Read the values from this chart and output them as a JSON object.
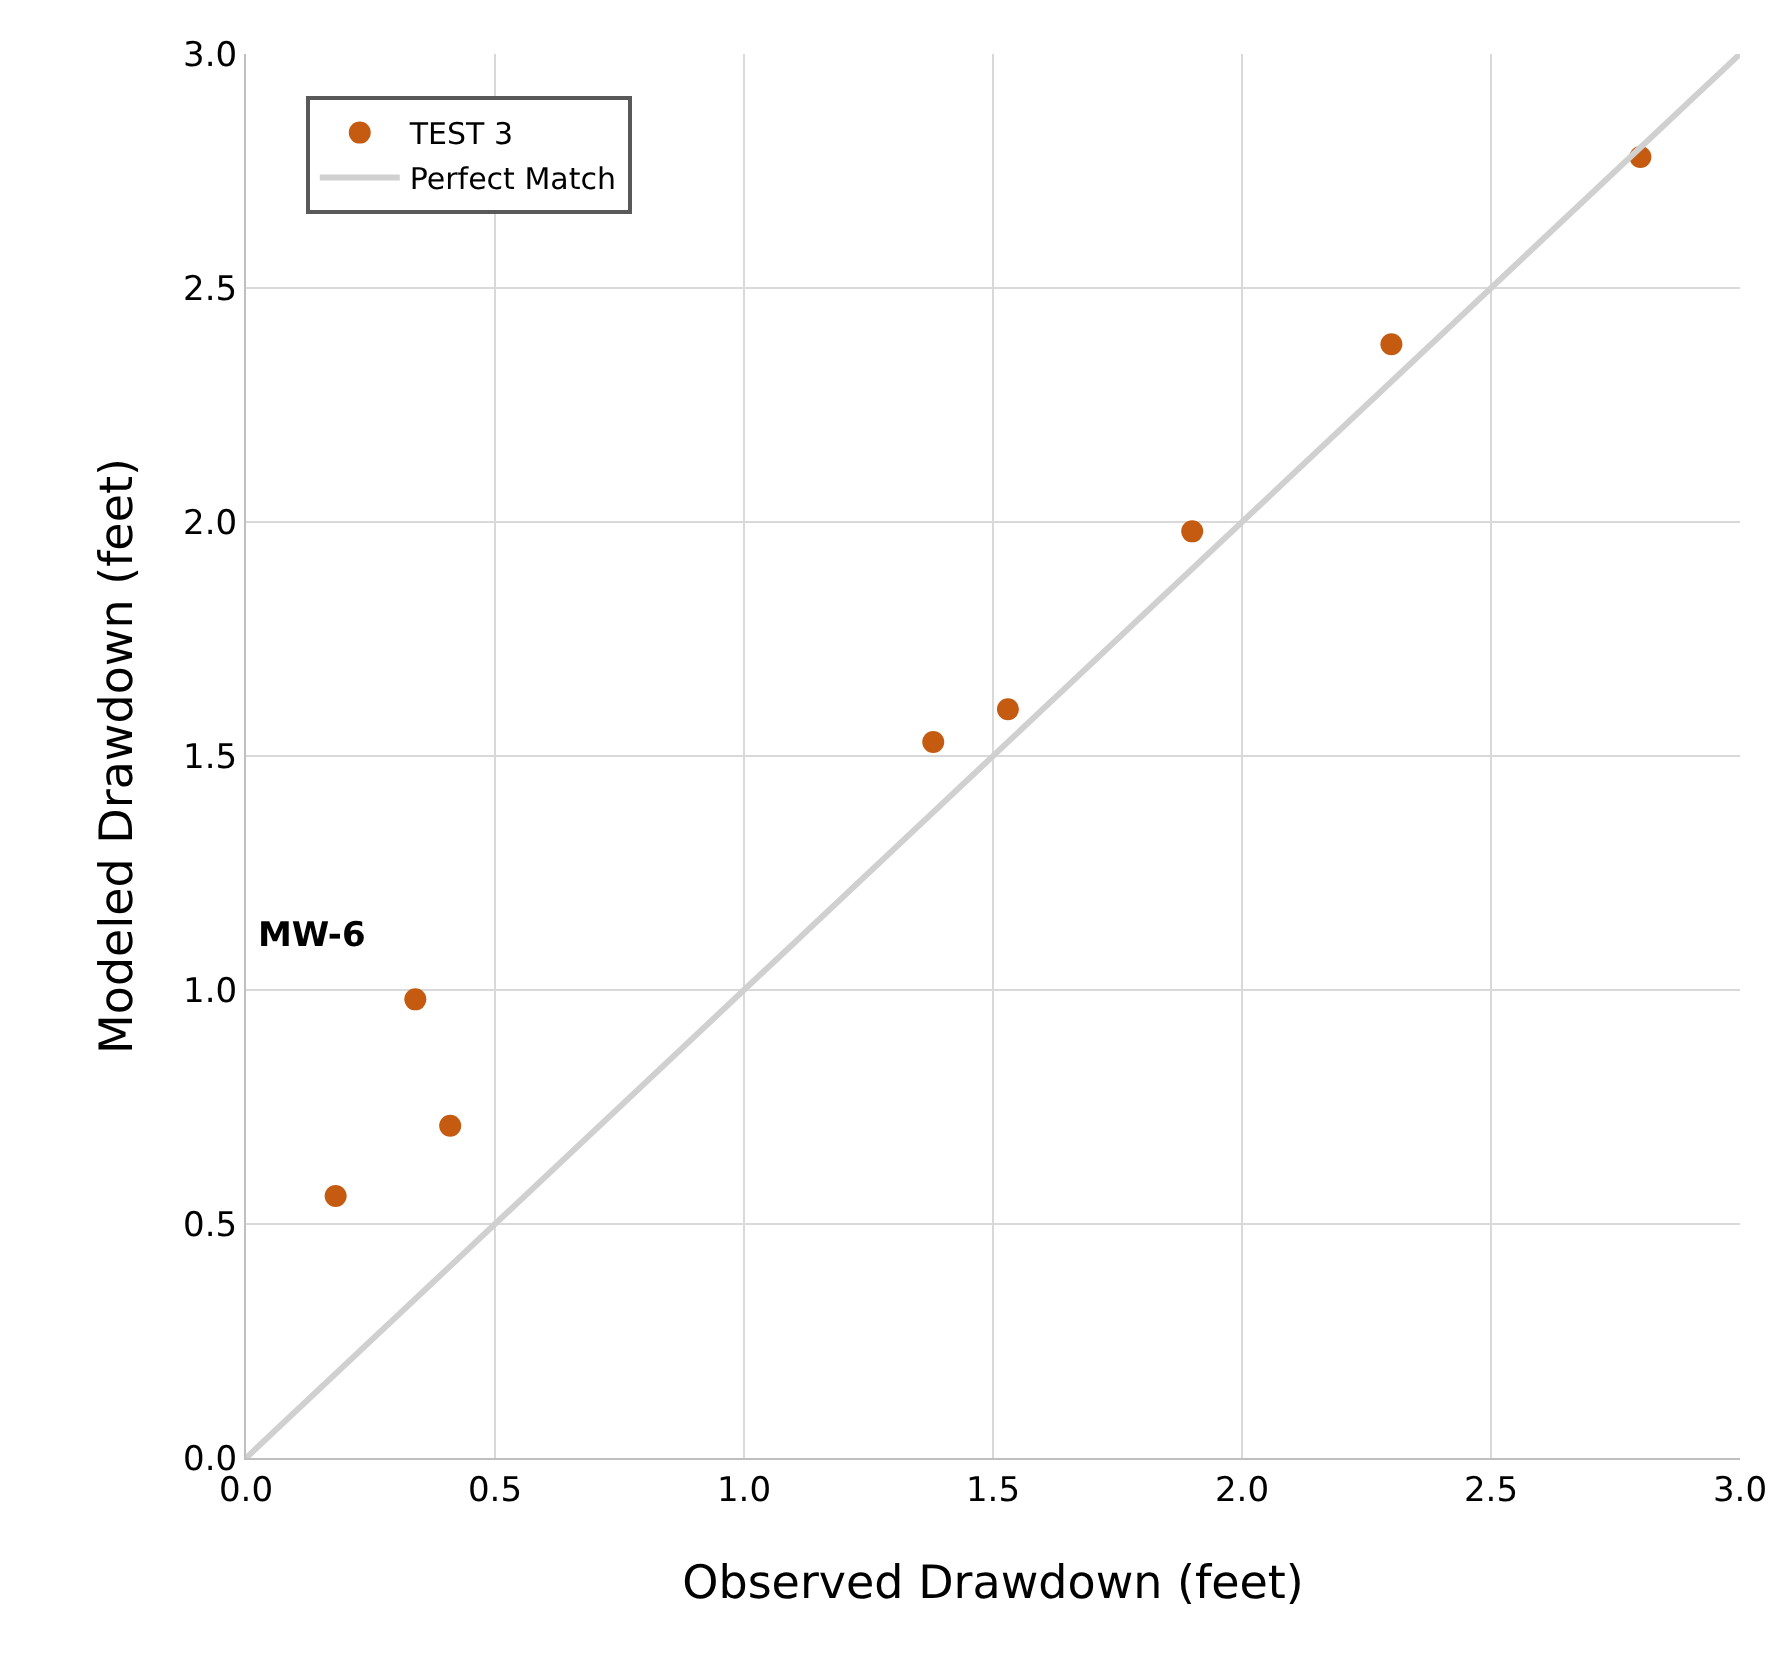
{
  "chart_data": {
    "type": "scatter",
    "xlabel": "Observed Drawdown (feet)",
    "ylabel": "Modeled Drawdown (feet)",
    "xlim": [
      0,
      3
    ],
    "ylim": [
      0,
      3
    ],
    "xticks": [
      {
        "value": 0,
        "label": "0.0"
      },
      {
        "value": 0.5,
        "label": "0.5"
      },
      {
        "value": 1,
        "label": "1.0"
      },
      {
        "value": 1.5,
        "label": "1.5"
      },
      {
        "value": 2,
        "label": "2.0"
      },
      {
        "value": 2.5,
        "label": "2.5"
      },
      {
        "value": 3,
        "label": "3.0"
      }
    ],
    "yticks": [
      {
        "value": 0,
        "label": "0.0"
      },
      {
        "value": 0.5,
        "label": "0.5"
      },
      {
        "value": 1,
        "label": "1.0"
      },
      {
        "value": 1.5,
        "label": "1.5"
      },
      {
        "value": 2,
        "label": "2.0"
      },
      {
        "value": 2.5,
        "label": "2.5"
      },
      {
        "value": 3,
        "label": "3.0"
      }
    ],
    "grid": true,
    "legend": "top left",
    "series": [
      {
        "name": "TEST 3",
        "marker": "circle",
        "color": "#c55a11",
        "x": [
          0.18,
          0.34,
          0.41,
          1.38,
          1.53,
          1.9,
          2.3,
          2.8
        ],
        "values": [
          0.56,
          0.98,
          0.71,
          1.53,
          1.6,
          1.98,
          2.38,
          2.78
        ]
      },
      {
        "name": "Perfect Match",
        "type": "line",
        "color": "#d0d0d0",
        "line_style": "solid",
        "marker": "none",
        "x": [
          0,
          3
        ],
        "values": [
          0,
          3
        ]
      }
    ],
    "annotations": [
      {
        "text": "MW-6",
        "x": 0.34,
        "y": 0.98
      }
    ]
  }
}
